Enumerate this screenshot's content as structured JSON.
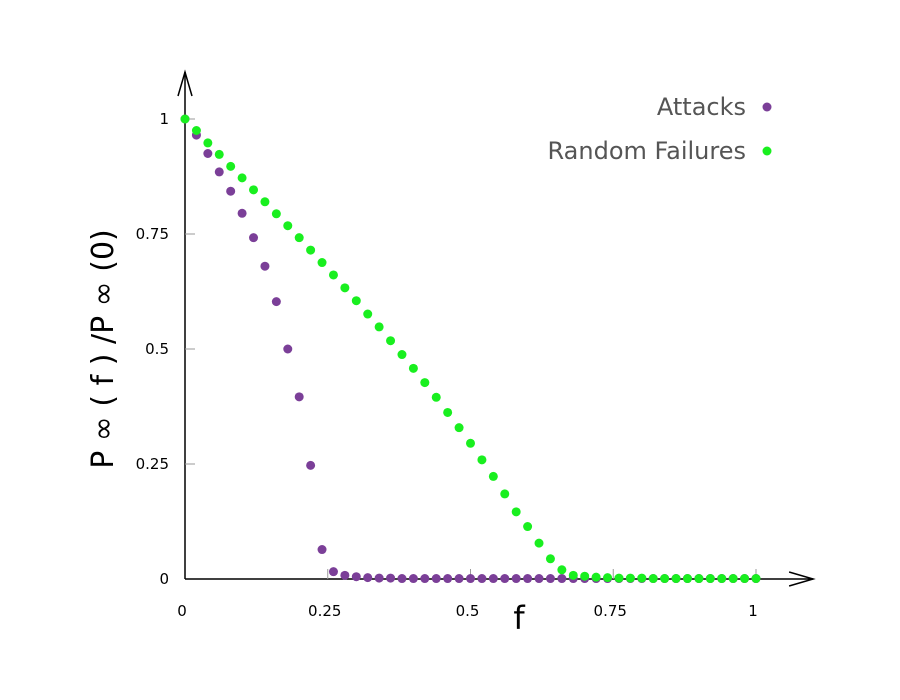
{
  "chart_data": {
    "type": "scatter",
    "xlabel": "f",
    "ylabel": "P ∞ ( f ) /P ∞ (0)",
    "xlim": [
      0,
      1.1
    ],
    "ylim": [
      0,
      1.0
    ],
    "x_ticks": [
      {
        "value": 0,
        "label": "0"
      },
      {
        "value": 0.25,
        "label": "0.25"
      },
      {
        "value": 0.5,
        "label": "0.5"
      },
      {
        "value": 0.75,
        "label": "0.75"
      },
      {
        "value": 1,
        "label": "1"
      }
    ],
    "y_ticks": [
      {
        "value": 0,
        "label": "0"
      },
      {
        "value": 0.25,
        "label": "0.25"
      },
      {
        "value": 0.5,
        "label": "0.5"
      },
      {
        "value": 0.75,
        "label": "0.75"
      },
      {
        "value": 1,
        "label": "1"
      }
    ],
    "grid": false,
    "legend_position": "top-right",
    "series": [
      {
        "name": "Attacks",
        "color": "#7b3f98",
        "x": [
          0.0,
          0.02,
          0.04,
          0.06,
          0.08,
          0.1,
          0.12,
          0.14,
          0.16,
          0.18,
          0.2,
          0.22,
          0.24,
          0.26,
          0.28,
          0.3,
          0.32,
          0.34,
          0.36,
          0.38,
          0.4,
          0.42,
          0.44,
          0.46,
          0.48,
          0.5,
          0.52,
          0.54,
          0.56,
          0.58,
          0.6,
          0.62,
          0.64,
          0.66,
          0.68,
          0.7,
          0.72,
          0.74,
          0.76,
          0.78,
          0.8,
          0.82,
          0.84,
          0.86,
          0.88,
          0.9,
          0.92,
          0.94,
          0.96,
          0.98,
          1.0
        ],
        "y": [
          1.0,
          0.965,
          0.925,
          0.885,
          0.843,
          0.795,
          0.742,
          0.68,
          0.603,
          0.5,
          0.396,
          0.247,
          0.064,
          0.016,
          0.008,
          0.005,
          0.003,
          0.002,
          0.002,
          0.001,
          0.001,
          0.001,
          0.001,
          0.001,
          0.001,
          0.001,
          0.001,
          0.001,
          0.001,
          0.001,
          0.001,
          0.001,
          0.001,
          0.001,
          0.001,
          0.001,
          0.001,
          0.001,
          0.001,
          0.001,
          0.001,
          0.001,
          0.001,
          0.001,
          0.001,
          0.001,
          0.001,
          0.001,
          0.001,
          0.001,
          0.001
        ]
      },
      {
        "name": "Random Failures",
        "color": "#19ef1f",
        "x": [
          0.0,
          0.02,
          0.04,
          0.06,
          0.08,
          0.1,
          0.12,
          0.14,
          0.16,
          0.18,
          0.2,
          0.22,
          0.24,
          0.26,
          0.28,
          0.3,
          0.32,
          0.34,
          0.36,
          0.38,
          0.4,
          0.42,
          0.44,
          0.46,
          0.48,
          0.5,
          0.52,
          0.54,
          0.56,
          0.58,
          0.6,
          0.62,
          0.64,
          0.66,
          0.68,
          0.7,
          0.72,
          0.74,
          0.76,
          0.78,
          0.8,
          0.82,
          0.84,
          0.86,
          0.88,
          0.9,
          0.92,
          0.94,
          0.96,
          0.98,
          1.0
        ],
        "y": [
          1.0,
          0.975,
          0.948,
          0.923,
          0.897,
          0.872,
          0.846,
          0.82,
          0.794,
          0.768,
          0.742,
          0.715,
          0.688,
          0.661,
          0.633,
          0.605,
          0.576,
          0.548,
          0.518,
          0.488,
          0.458,
          0.427,
          0.395,
          0.362,
          0.329,
          0.295,
          0.259,
          0.223,
          0.185,
          0.146,
          0.114,
          0.078,
          0.044,
          0.02,
          0.008,
          0.006,
          0.004,
          0.003,
          0.002,
          0.002,
          0.002,
          0.001,
          0.001,
          0.001,
          0.001,
          0.001,
          0.001,
          0.001,
          0.001,
          0.001,
          0.001
        ]
      }
    ]
  }
}
